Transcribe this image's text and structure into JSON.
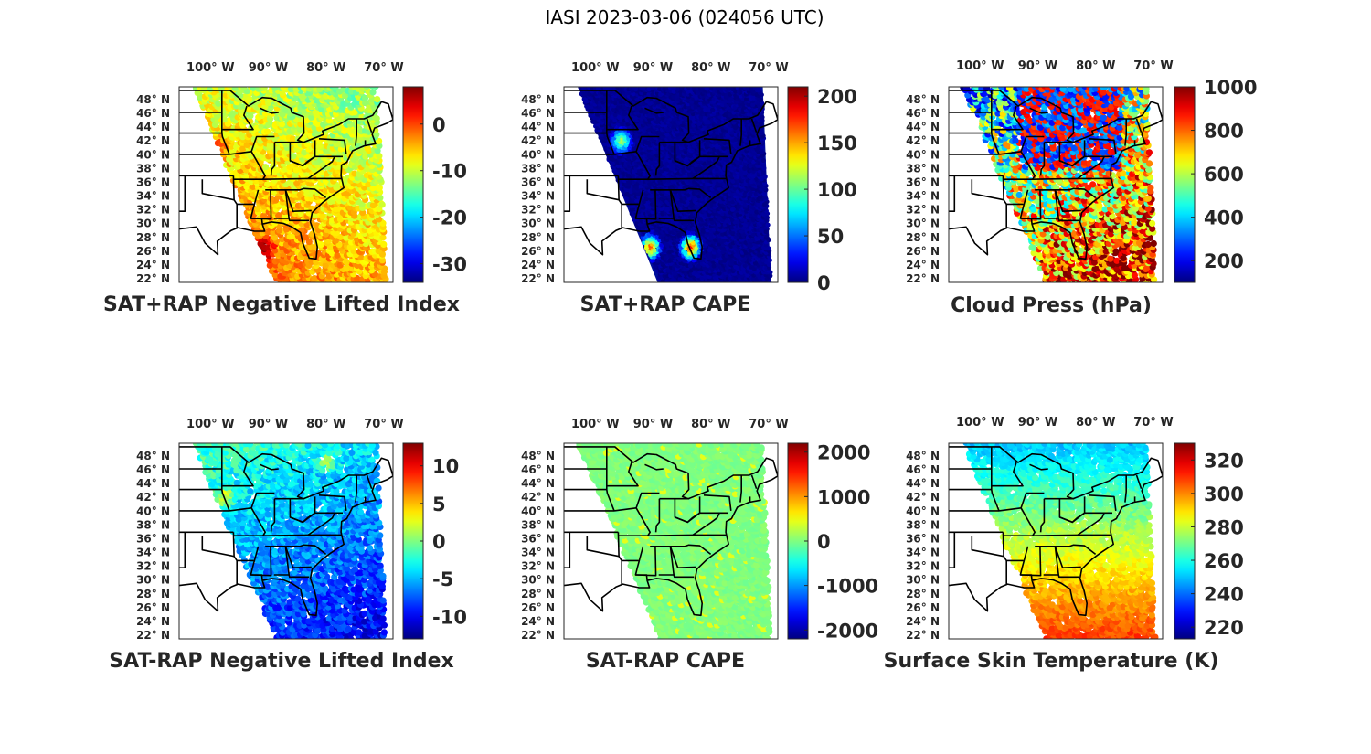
{
  "figure_title": "IASI 2023-03-06 (024056 UTC)",
  "chart_data": [
    {
      "type": "scatter",
      "title": "SAT+RAP Negative Lifted Index",
      "x_ticks": [
        "100° W",
        "90° W",
        "80° W",
        "70° W"
      ],
      "y_ticks": [
        "48° N",
        "46° N",
        "44° N",
        "42° N",
        "40° N",
        "38° N",
        "36° N",
        "34° N",
        "32° N",
        "30° N",
        "28° N",
        "26° N",
        "24° N",
        "22° N"
      ],
      "colorbar": {
        "ticks": [
          0,
          -10,
          -20,
          -30
        ],
        "tick_labels": [
          "0",
          "-10",
          "-20",
          "-30"
        ],
        "range": [
          -34,
          8
        ]
      },
      "field": {
        "base": 0.58,
        "south_boost": 0.18,
        "east_drop": 0.05,
        "noise": 0.08,
        "hot_spots": [
          [
            -97,
            41,
            0.22
          ],
          [
            -89,
            27,
            0.3
          ]
        ]
      }
    },
    {
      "type": "scatter",
      "title": "SAT+RAP CAPE",
      "x_ticks": [
        "100° W",
        "90° W",
        "80° W",
        "70° W"
      ],
      "y_ticks": [
        "48° N",
        "46° N",
        "44° N",
        "42° N",
        "40° N",
        "38° N",
        "36° N",
        "34° N",
        "32° N",
        "30° N",
        "28° N",
        "26° N",
        "24° N",
        "22° N"
      ],
      "colorbar": {
        "ticks": [
          200,
          150,
          100,
          50,
          0
        ],
        "tick_labels": [
          "200",
          "150",
          "100",
          "50",
          "0"
        ],
        "range": [
          0,
          210
        ]
      },
      "field": {
        "base": 0.02,
        "south_boost": 0.0,
        "east_drop": 0.0,
        "noise": 0.02,
        "hot_spots": [
          [
            -89,
            27,
            0.85
          ],
          [
            -82,
            27,
            0.9
          ],
          [
            -94,
            42,
            0.6
          ]
        ]
      }
    },
    {
      "type": "scatter",
      "title": "Cloud Press (hPa)",
      "x_ticks": [
        "100° W",
        "90° W",
        "80° W",
        "70° W"
      ],
      "y_ticks": [
        "48° N",
        "46° N",
        "44° N",
        "42° N",
        "40° N",
        "38° N",
        "36° N",
        "34° N",
        "32° N",
        "30° N",
        "28° N",
        "26° N",
        "24° N",
        "22° N"
      ],
      "colorbar": {
        "ticks": [
          1000,
          800,
          600,
          400,
          200
        ],
        "tick_labels": [
          "1000",
          "800",
          "600",
          "400",
          "200"
        ],
        "range": [
          100,
          1000
        ]
      },
      "field": {
        "base": 0.45,
        "south_boost": 0.35,
        "east_drop": -0.1,
        "noise": 0.3,
        "hot_spots": [
          [
            -74,
            26,
            0.35
          ]
        ]
      }
    },
    {
      "type": "scatter",
      "title": "SAT-RAP Negative Lifted Index",
      "x_ticks": [
        "100° W",
        "90° W",
        "80° W",
        "70° W"
      ],
      "y_ticks": [
        "48° N",
        "46° N",
        "44° N",
        "42° N",
        "40° N",
        "38° N",
        "36° N",
        "34° N",
        "32° N",
        "30° N",
        "28° N",
        "26° N",
        "24° N",
        "22° N"
      ],
      "colorbar": {
        "ticks": [
          10,
          5,
          0,
          -5,
          -10
        ],
        "tick_labels": [
          "10",
          "5",
          "0",
          "-5",
          "-10"
        ],
        "range": [
          -13,
          13
        ]
      },
      "field": {
        "base": 0.36,
        "south_boost": -0.2,
        "east_drop": 0.05,
        "noise": 0.08,
        "hot_spots": [
          [
            -78,
            47,
            0.2
          ],
          [
            -96,
            42,
            0.25
          ]
        ]
      }
    },
    {
      "type": "scatter",
      "title": "SAT-RAP CAPE",
      "x_ticks": [
        "100° W",
        "90° W",
        "80° W",
        "70° W"
      ],
      "y_ticks": [
        "48° N",
        "46° N",
        "44° N",
        "42° N",
        "40° N",
        "38° N",
        "36° N",
        "34° N",
        "32° N",
        "30° N",
        "28° N",
        "26° N",
        "24° N",
        "22° N"
      ],
      "colorbar": {
        "ticks": [
          2000,
          1000,
          0,
          -1000,
          -2000
        ],
        "tick_labels": [
          "2000",
          "1000",
          "0",
          "-1000",
          "-2000"
        ],
        "range": [
          -2200,
          2200
        ]
      },
      "field": {
        "base": 0.5,
        "south_boost": 0.0,
        "east_drop": 0.0,
        "noise": 0.02,
        "hot_spots": []
      }
    },
    {
      "type": "scatter",
      "title": "Surface Skin Temperature (K)",
      "x_ticks": [
        "100° W",
        "90° W",
        "80° W",
        "70° W"
      ],
      "y_ticks": [
        "48° N",
        "46° N",
        "44° N",
        "42° N",
        "40° N",
        "38° N",
        "36° N",
        "34° N",
        "32° N",
        "30° N",
        "28° N",
        "26° N",
        "24° N",
        "22° N"
      ],
      "colorbar": {
        "ticks": [
          320,
          300,
          280,
          260,
          240,
          220
        ],
        "tick_labels": [
          "320",
          "300",
          "280",
          "260",
          "240",
          "220"
        ],
        "range": [
          213,
          330
        ]
      },
      "field": {
        "base": 0.4,
        "south_boost": 0.42,
        "east_drop": 0.0,
        "noise": 0.04,
        "hot_spots": []
      }
    }
  ]
}
